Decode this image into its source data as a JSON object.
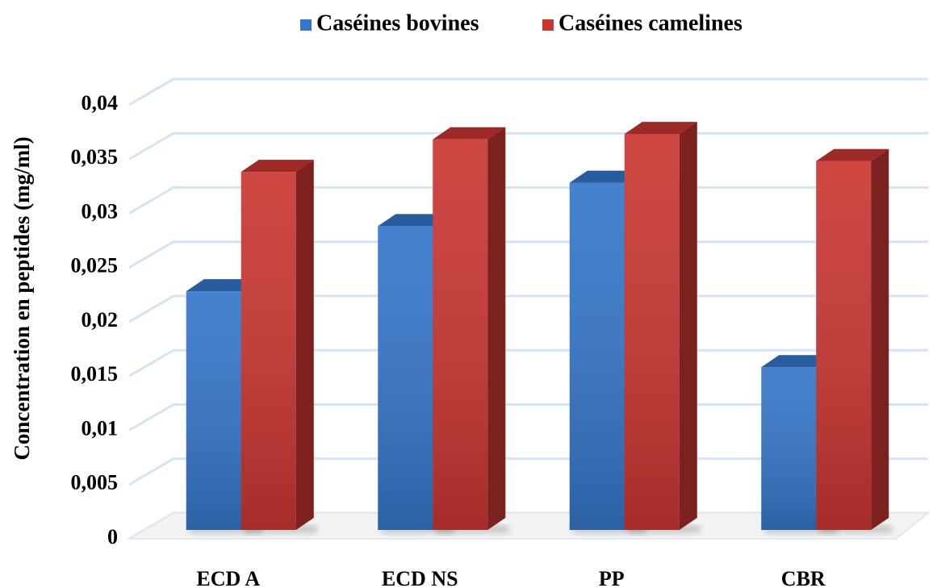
{
  "chart_data": {
    "type": "bar3d",
    "categories": [
      "ECD A",
      "ECD NS",
      "PP",
      "CBR"
    ],
    "series": [
      {
        "name": "Caséines bovines",
        "color": "#3576c9",
        "values": [
          0.022,
          0.028,
          0.032,
          0.015
        ]
      },
      {
        "name": "Caséines camelines",
        "color": "#c93632",
        "values": [
          0.033,
          0.036,
          0.0365,
          0.034
        ]
      }
    ],
    "y_label": "Concentration en peptides (mg/ml)",
    "ylim": [
      0,
      0.04
    ],
    "yticks": [
      0,
      {
        "value": 0.005,
        "label": "0,005"
      },
      {
        "value": 0.01,
        "label": "0,01"
      },
      {
        "value": 0.015,
        "label": "0,015"
      },
      {
        "value": 0.02,
        "label": "0,02"
      },
      {
        "value": 0.025,
        "label": "0,025"
      },
      {
        "value": 0.03,
        "label": "0,03"
      },
      {
        "value": 0.035,
        "label": "0,035"
      },
      {
        "value": 0.04,
        "label": "0,04"
      }
    ],
    "grid": true,
    "legend": "top"
  }
}
